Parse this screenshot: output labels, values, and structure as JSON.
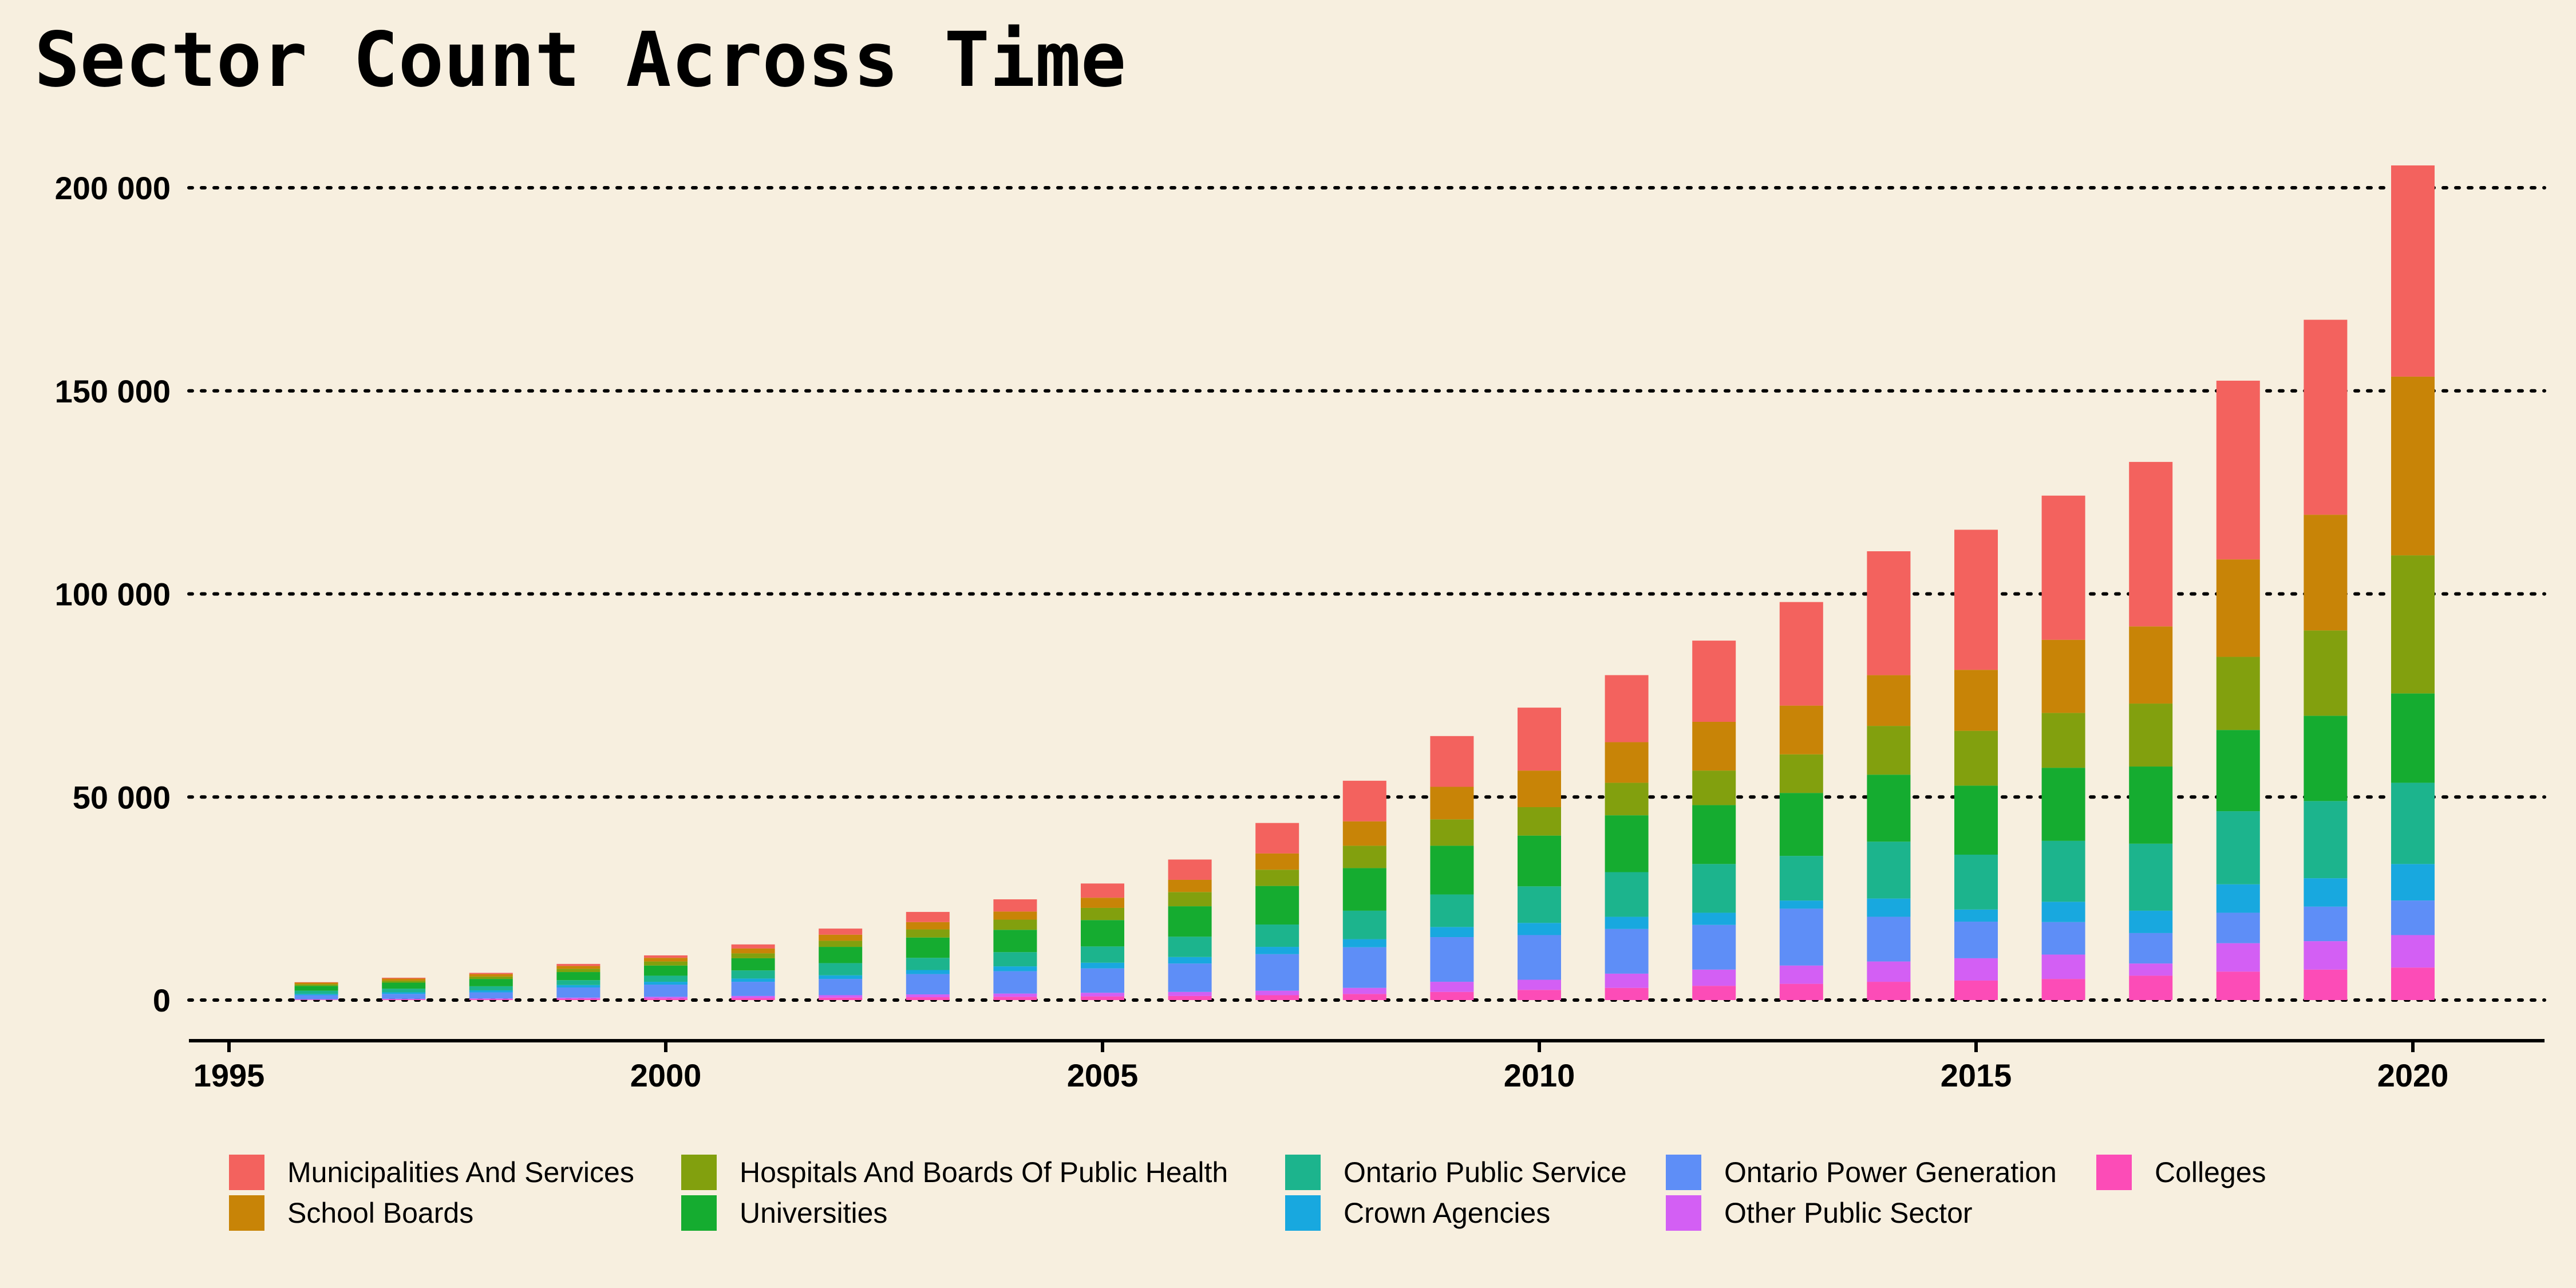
{
  "chart_data": {
    "type": "bar",
    "stacked": true,
    "title": "Sector Count Across Time",
    "subtitle": "",
    "xlabel": "",
    "ylabel": "",
    "x": [
      1996,
      1997,
      1998,
      1999,
      2000,
      2001,
      2002,
      2003,
      2004,
      2005,
      2006,
      2007,
      2008,
      2009,
      2010,
      2011,
      2012,
      2013,
      2014,
      2015,
      2016,
      2017,
      2018,
      2019,
      2020
    ],
    "xlim": [
      1995,
      2021
    ],
    "ylim": [
      0,
      210000
    ],
    "x_ticks": [
      1995,
      2000,
      2005,
      2010,
      2015,
      2020
    ],
    "x_tick_labels": [
      "1995",
      "2000",
      "2005",
      "2010",
      "2015",
      "2020"
    ],
    "y_ticks": [
      0,
      50000,
      100000,
      150000,
      200000
    ],
    "y_tick_labels": [
      "0",
      "50 000",
      "100 000",
      "150 000",
      "200 000"
    ],
    "grid": "horizontal dotted",
    "legend_position": "bottom",
    "series": [
      {
        "name": "Colleges",
        "color": "#fc4cb7",
        "values": [
          100,
          150,
          200,
          300,
          400,
          500,
          600,
          700,
          800,
          900,
          1000,
          1200,
          1500,
          2000,
          2500,
          3000,
          3500,
          4000,
          4500,
          4800,
          5200,
          6000,
          7000,
          7500,
          8000
        ]
      },
      {
        "name": "Other Public Sector",
        "color": "#d35ff4",
        "values": [
          100,
          150,
          200,
          300,
          400,
          500,
          600,
          700,
          800,
          900,
          1000,
          1100,
          1500,
          2500,
          2500,
          3500,
          4000,
          4500,
          5000,
          5500,
          6000,
          3000,
          7000,
          7000,
          8000
        ]
      },
      {
        "name": "Ontario Power Generation",
        "color": "#5e8ef7",
        "values": [
          1000,
          1200,
          1500,
          2500,
          3000,
          3500,
          4000,
          5000,
          5500,
          6000,
          7000,
          9000,
          10000,
          11000,
          11000,
          11000,
          11000,
          14000,
          11000,
          9000,
          8000,
          7500,
          7500,
          8500,
          8500
        ]
      },
      {
        "name": "Crown Agencies",
        "color": "#18a8df",
        "values": [
          300,
          400,
          500,
          600,
          700,
          800,
          900,
          1000,
          1200,
          1400,
          1600,
          1800,
          2000,
          2500,
          3000,
          3000,
          3000,
          2000,
          4500,
          3000,
          5000,
          5500,
          7000,
          7000,
          9000
        ]
      },
      {
        "name": "Ontario Public Service",
        "color": "#1cb48d",
        "values": [
          800,
          900,
          1000,
          1200,
          1500,
          2000,
          3000,
          3000,
          3500,
          4000,
          5000,
          5500,
          7000,
          8000,
          9000,
          11000,
          12000,
          11000,
          14000,
          13500,
          15000,
          16500,
          18000,
          19000,
          20000
        ]
      },
      {
        "name": "Universities",
        "color": "#15ac30",
        "values": [
          1200,
          1500,
          1800,
          2000,
          2500,
          3000,
          4000,
          5000,
          5500,
          6500,
          7500,
          9500,
          10500,
          12000,
          12500,
          14000,
          14500,
          15500,
          16500,
          17000,
          18000,
          19000,
          20000,
          21000,
          22000
        ]
      },
      {
        "name": "Hospitals And Boards Of Public Health",
        "color": "#82a00e",
        "values": [
          400,
          500,
          600,
          800,
          1000,
          1200,
          1500,
          2000,
          2500,
          3000,
          3500,
          4000,
          5500,
          6500,
          7000,
          8000,
          8500,
          9500,
          12000,
          13500,
          13500,
          15500,
          18000,
          21000,
          34000
        ]
      },
      {
        "name": "School Boards",
        "color": "#c88407",
        "values": [
          400,
          500,
          600,
          700,
          900,
          1200,
          1500,
          1800,
          2000,
          2500,
          3000,
          4000,
          6000,
          8000,
          9000,
          10000,
          12000,
          12000,
          12500,
          15000,
          18000,
          19000,
          24000,
          28500,
          44000
        ]
      },
      {
        "name": "Municipalities And Services",
        "color": "#f3625e",
        "values": [
          100,
          200,
          300,
          500,
          600,
          1000,
          1500,
          2500,
          3000,
          3500,
          5000,
          7500,
          10000,
          12500,
          15500,
          16500,
          20000,
          25500,
          30500,
          34500,
          35500,
          40500,
          44000,
          48000,
          52000
        ]
      }
    ],
    "legend_order": [
      "Municipalities And Services",
      "School Boards",
      "Hospitals And Boards Of Public Health",
      "Universities",
      "Ontario Public Service",
      "Crown Agencies",
      "Ontario Power Generation",
      "Other Public Sector",
      "Colleges"
    ]
  }
}
